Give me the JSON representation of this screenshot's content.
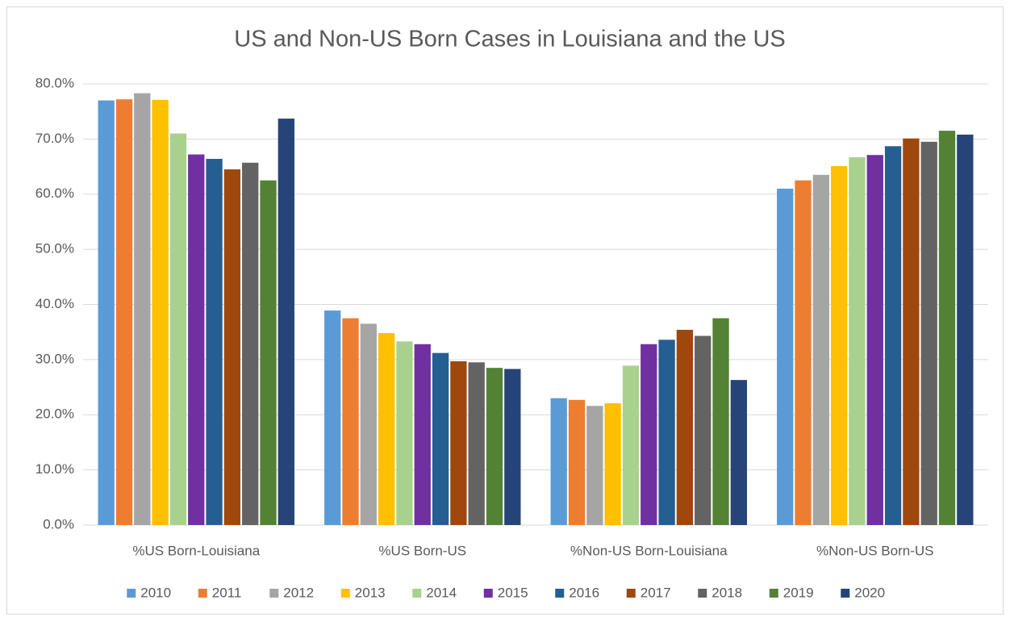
{
  "chart_data": {
    "type": "bar",
    "title": "US and Non-US Born Cases in Louisiana and the US",
    "categories": [
      "%US Born-Louisiana",
      "%US Born-US",
      "%Non-US Born-Louisiana",
      "%Non-US Born-US"
    ],
    "series": [
      {
        "name": "2010",
        "color": "#5b9bd5",
        "values": [
          77.0,
          38.9,
          23.0,
          61.0
        ]
      },
      {
        "name": "2011",
        "color": "#ed7d31",
        "values": [
          77.2,
          37.5,
          22.7,
          62.5
        ]
      },
      {
        "name": "2012",
        "color": "#a5a5a5",
        "values": [
          78.3,
          36.5,
          21.6,
          63.5
        ]
      },
      {
        "name": "2013",
        "color": "#ffc000",
        "values": [
          77.1,
          34.8,
          22.1,
          65.1
        ]
      },
      {
        "name": "2014",
        "color": "#a9d18e",
        "values": [
          71.0,
          33.3,
          28.9,
          66.7
        ]
      },
      {
        "name": "2015",
        "color": "#7030a0",
        "values": [
          67.2,
          32.8,
          32.8,
          67.1
        ]
      },
      {
        "name": "2016",
        "color": "#255e91",
        "values": [
          66.4,
          31.2,
          33.6,
          68.7
        ]
      },
      {
        "name": "2017",
        "color": "#9e480e",
        "values": [
          64.5,
          29.7,
          35.4,
          70.1
        ]
      },
      {
        "name": "2018",
        "color": "#636363",
        "values": [
          65.7,
          29.5,
          34.3,
          69.5
        ]
      },
      {
        "name": "2019",
        "color": "#548235",
        "values": [
          62.5,
          28.5,
          37.5,
          71.5
        ]
      },
      {
        "name": "2020",
        "color": "#264478",
        "values": [
          73.7,
          28.3,
          26.3,
          70.8
        ]
      }
    ],
    "ylim": [
      0,
      80
    ],
    "yticks": [
      {
        "value": 0,
        "label": "0.0%"
      },
      {
        "value": 10,
        "label": "10.0%"
      },
      {
        "value": 20,
        "label": "20.0%"
      },
      {
        "value": 30,
        "label": "30.0%"
      },
      {
        "value": 40,
        "label": "40.0%"
      },
      {
        "value": 50,
        "label": "50.0%"
      },
      {
        "value": 60,
        "label": "60.0%"
      },
      {
        "value": 70,
        "label": "70.0%"
      },
      {
        "value": 80,
        "label": "80.0%"
      }
    ],
    "grid": true,
    "legend": "bottom"
  }
}
